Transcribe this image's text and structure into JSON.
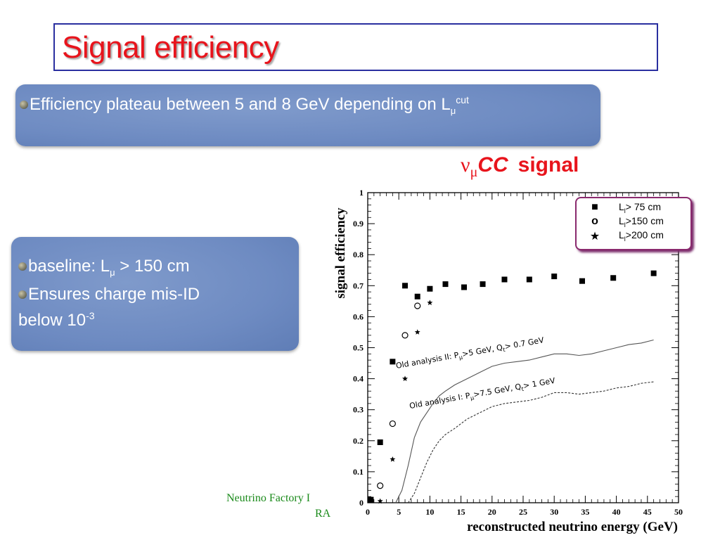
{
  "slide": {
    "title": "Signal efficiency",
    "panel_top": {
      "line1_text": "Efficiency plateau between 5 and 8 GeV depending on L",
      "line1_sub": "μ",
      "line1_sup": "cut"
    },
    "panel_left": {
      "line1_pre": "baseline:   L",
      "line1_sub": "μ",
      "line1_post": " > 150 cm",
      "line2": "Ensures charge mis-ID",
      "line3_text": "below 10",
      "line3_sup": "-3"
    },
    "signal_label": {
      "nu": "ν",
      "mu": "μ",
      "cc": "CC",
      "signal": "signal"
    },
    "footer_line1": "Neutrino Factory I",
    "footer_line2": "RA"
  },
  "colors": {
    "title_red": "#e8141c",
    "panel_blue": "#6e8bc2",
    "legend_border": "#8a2a6e",
    "footer_green": "#1a8a1a"
  },
  "chart_data": {
    "type": "scatter",
    "xlabel": "reconstructed neutrino energy (GeV)",
    "ylabel": "signal efficiency",
    "xlim": [
      0,
      50
    ],
    "ylim": [
      0,
      1
    ],
    "x_ticks": [
      "0",
      "5",
      "10",
      "15",
      "20",
      "25",
      "30",
      "35",
      "40",
      "45",
      "50"
    ],
    "y_ticks": [
      "0",
      "0.1",
      "0.2",
      "0.3",
      "0.4",
      "0.5",
      "0.6",
      "0.7",
      "0.8",
      "0.9",
      "1"
    ],
    "legend_placement": "top-right",
    "series": [
      {
        "name": "L > 75 cm",
        "legend_pre": "L",
        "legend_sub": "l",
        "legend_post": "> 75 cm",
        "marker": "square",
        "x": [
          0.5,
          2,
          4,
          6,
          8,
          10,
          12.5,
          15.5,
          18.5,
          22,
          26,
          30,
          34.5,
          39.5,
          46
        ],
        "y": [
          0.01,
          0.195,
          0.455,
          0.7,
          0.665,
          0.69,
          0.705,
          0.695,
          0.705,
          0.72,
          0.72,
          0.73,
          0.715,
          0.725,
          0.74
        ]
      },
      {
        "name": "L >150 cm",
        "legend_pre": "L",
        "legend_sub": "l",
        "legend_post": ">150 cm",
        "marker": "circle",
        "x": [
          2,
          4,
          6,
          8
        ],
        "y": [
          0.055,
          0.255,
          0.54,
          0.635
        ]
      },
      {
        "name": "L >200 cm",
        "legend_pre": "L",
        "legend_sub": "l",
        "legend_post": ">200 cm",
        "marker": "star",
        "x": [
          2,
          4,
          6,
          8,
          10
        ],
        "y": [
          0.005,
          0.14,
          0.4,
          0.55,
          0.645
        ]
      },
      {
        "name": "Old analysis II",
        "label": "Old analysis II: P",
        "label_sub": "μ",
        "label_mid": ">5 GeV,   Q",
        "label_sub2": "t",
        "label_post": "> 0.7 GeV",
        "line_style": "solid",
        "x": [
          4.5,
          5.5,
          6.5,
          7.5,
          8.5,
          9.5,
          10.5,
          11.5,
          12.5,
          14,
          16,
          18,
          20,
          22,
          24,
          26,
          28,
          30,
          32,
          34,
          36,
          38,
          40,
          42,
          44,
          46
        ],
        "y": [
          0.0,
          0.04,
          0.12,
          0.21,
          0.26,
          0.29,
          0.32,
          0.345,
          0.36,
          0.38,
          0.4,
          0.42,
          0.44,
          0.45,
          0.455,
          0.46,
          0.47,
          0.48,
          0.48,
          0.475,
          0.48,
          0.49,
          0.5,
          0.51,
          0.515,
          0.525
        ]
      },
      {
        "name": "Old analysis I",
        "label": "Old analysis I: P",
        "label_sub": "μ",
        "label_mid": ">7.5 GeV,   Q",
        "label_sub2": "t",
        "label_post": "> 1 GeV",
        "line_style": "dashed",
        "x": [
          6.5,
          7.5,
          8.5,
          9.5,
          10.5,
          11.5,
          12.5,
          14,
          16,
          18,
          20,
          22,
          24,
          26,
          28,
          30,
          32,
          34,
          36,
          38,
          40,
          42,
          44,
          46
        ],
        "y": [
          0.0,
          0.03,
          0.08,
          0.13,
          0.17,
          0.2,
          0.22,
          0.24,
          0.27,
          0.29,
          0.31,
          0.32,
          0.325,
          0.33,
          0.34,
          0.355,
          0.355,
          0.35,
          0.355,
          0.36,
          0.37,
          0.375,
          0.385,
          0.39
        ]
      }
    ]
  }
}
